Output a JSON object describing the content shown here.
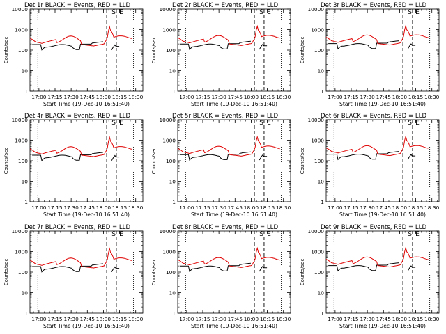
{
  "figure": {
    "background": "#ffffff",
    "colors": {
      "events": "#000000",
      "lld": "#e00000",
      "axes": "#000000"
    }
  },
  "chart_data": [
    {
      "type": "line",
      "title": "Det 1r BLACK = Events, RED = LLD",
      "xlabel": "Start Time (19-Dec-10 16:51:40)",
      "ylabel": "Counts/sec",
      "yscale": "log",
      "ylim": [
        1,
        10000
      ],
      "xlim_minutes": [
        0,
        105
      ],
      "x_tick_labels": [
        "17:00",
        "17:15",
        "17:30",
        "17:45",
        "18:00",
        "18:15",
        "18:30"
      ],
      "y_tick_labels": [
        "1",
        "10",
        "100",
        "1000",
        "10000"
      ],
      "annotations": [
        "S",
        "E"
      ],
      "vlines_dotted": [
        "16:59",
        "18:28"
      ],
      "vlines_dashed": [
        "18:03",
        "18:12"
      ],
      "series": []
    },
    {
      "type": "line",
      "title": "Det 2r BLACK = Events, RED = LLD",
      "xlabel": "Start Time (19-Dec-10 16:51:40)",
      "ylabel": "Counts/sec",
      "yscale": "log",
      "ylim": [
        1,
        10000
      ],
      "xlim_minutes": [
        0,
        105
      ],
      "x_tick_labels": [
        "17:00",
        "17:15",
        "17:30",
        "17:45",
        "18:00",
        "18:15",
        "18:30"
      ],
      "y_tick_labels": [
        "1",
        "10",
        "100",
        "1000",
        "10000"
      ],
      "annotations": [
        "S",
        "E"
      ],
      "vlines_dotted": [
        "16:59",
        "18:28"
      ],
      "vlines_dashed": [
        "18:03",
        "18:12"
      ],
      "series": []
    },
    {
      "type": "line",
      "title": "Det 3r BLACK = Events, RED = LLD",
      "xlabel": "Start Time (19-Dec-10 16:51:40)",
      "ylabel": "Counts/sec",
      "yscale": "log",
      "ylim": [
        1,
        10000
      ],
      "xlim_minutes": [
        0,
        105
      ],
      "x_tick_labels": [
        "17:00",
        "17:15",
        "17:30",
        "17:45",
        "18:00",
        "18:15",
        "18:30"
      ],
      "y_tick_labels": [
        "1",
        "10",
        "100",
        "1000",
        "10000"
      ],
      "annotations": [
        "S",
        "E"
      ],
      "vlines_dotted": [
        "16:59",
        "18:28"
      ],
      "vlines_dashed": [
        "18:03",
        "18:12"
      ],
      "series": []
    },
    {
      "type": "line",
      "title": "Det 4r BLACK = Events, RED = LLD",
      "xlabel": "Start Time (19-Dec-10 16:51:40)",
      "ylabel": "Counts/sec",
      "yscale": "log",
      "ylim": [
        1,
        10000
      ],
      "xlim_minutes": [
        0,
        105
      ],
      "x_tick_labels": [
        "17:00",
        "17:15",
        "17:30",
        "17:45",
        "18:00",
        "18:15",
        "18:30"
      ],
      "y_tick_labels": [
        "1",
        "10",
        "100",
        "1000",
        "10000"
      ],
      "annotations": [
        "S",
        "E"
      ],
      "vlines_dotted": [
        "16:59",
        "18:28"
      ],
      "vlines_dashed": [
        "18:03",
        "18:12"
      ],
      "series": []
    },
    {
      "type": "line",
      "title": "Det 5r BLACK = Events, RED = LLD",
      "xlabel": "Start Time (19-Dec-10 16:51:40)",
      "ylabel": "Counts/sec",
      "yscale": "log",
      "ylim": [
        1,
        10000
      ],
      "xlim_minutes": [
        0,
        105
      ],
      "x_tick_labels": [
        "17:00",
        "17:15",
        "17:30",
        "17:45",
        "18:00",
        "18:15",
        "18:30"
      ],
      "y_tick_labels": [
        "1",
        "10",
        "100",
        "1000",
        "10000"
      ],
      "annotations": [
        "S",
        "E"
      ],
      "vlines_dotted": [
        "16:59",
        "18:28"
      ],
      "vlines_dashed": [
        "18:03",
        "18:12"
      ],
      "series": []
    },
    {
      "type": "line",
      "title": "Det 6r BLACK = Events, RED = LLD",
      "xlabel": "Start Time (19-Dec-10 16:51:40)",
      "ylabel": "Counts/sec",
      "yscale": "log",
      "ylim": [
        1,
        10000
      ],
      "xlim_minutes": [
        0,
        105
      ],
      "x_tick_labels": [
        "17:00",
        "17:15",
        "17:30",
        "17:45",
        "18:00",
        "18:15",
        "18:30"
      ],
      "y_tick_labels": [
        "1",
        "10",
        "100",
        "1000",
        "10000"
      ],
      "annotations": [
        "S",
        "E"
      ],
      "vlines_dotted": [
        "16:59",
        "18:28"
      ],
      "vlines_dashed": [
        "18:03",
        "18:12"
      ],
      "series": []
    },
    {
      "type": "line",
      "title": "Det 7r BLACK = Events, RED = LLD",
      "xlabel": "Start Time (19-Dec-10 16:51:40)",
      "ylabel": "Counts/sec",
      "yscale": "log",
      "ylim": [
        1,
        10000
      ],
      "xlim_minutes": [
        0,
        105
      ],
      "x_tick_labels": [
        "17:00",
        "17:15",
        "17:30",
        "17:45",
        "18:00",
        "18:15",
        "18:30"
      ],
      "y_tick_labels": [
        "1",
        "10",
        "100",
        "1000",
        "10000"
      ],
      "annotations": [
        "S",
        "E"
      ],
      "vlines_dotted": [
        "16:59",
        "18:28"
      ],
      "vlines_dashed": [
        "18:03",
        "18:12"
      ],
      "series": []
    },
    {
      "type": "line",
      "title": "Det 8r BLACK = Events, RED = LLD",
      "xlabel": "Start Time (19-Dec-10 16:51:40)",
      "ylabel": "Counts/sec",
      "yscale": "log",
      "ylim": [
        1,
        10000
      ],
      "xlim_minutes": [
        0,
        105
      ],
      "x_tick_labels": [
        "17:00",
        "17:15",
        "17:30",
        "17:45",
        "18:00",
        "18:15",
        "18:30"
      ],
      "y_tick_labels": [
        "1",
        "10",
        "100",
        "1000",
        "10000"
      ],
      "annotations": [
        "S",
        "E"
      ],
      "vlines_dotted": [
        "16:59",
        "18:28"
      ],
      "vlines_dashed": [
        "18:03",
        "18:12"
      ],
      "series": []
    },
    {
      "type": "line",
      "title": "Det 9r BLACK = Events, RED = LLD",
      "xlabel": "Start Time (19-Dec-10 16:51:40)",
      "ylabel": "Counts/sec",
      "yscale": "log",
      "ylim": [
        1,
        10000
      ],
      "xlim_minutes": [
        0,
        105
      ],
      "x_tick_labels": [
        "17:00",
        "17:15",
        "17:30",
        "17:45",
        "18:00",
        "18:15",
        "18:30"
      ],
      "y_tick_labels": [
        "1",
        "10",
        "100",
        "1000",
        "10000"
      ],
      "annotations": [
        "S",
        "E"
      ],
      "vlines_dotted": [
        "16:59",
        "18:28"
      ],
      "vlines_dashed": [
        "18:03",
        "18:12"
      ],
      "series": []
    }
  ]
}
